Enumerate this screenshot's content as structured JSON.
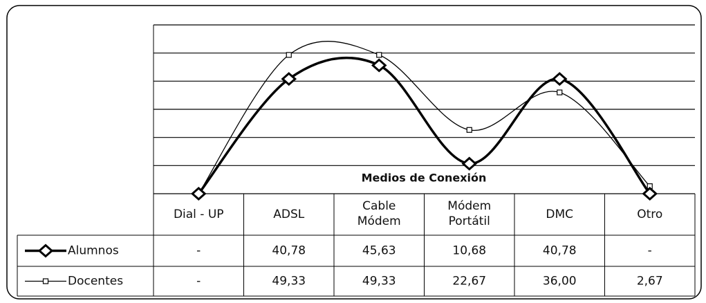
{
  "chart_data": {
    "type": "line",
    "x_label": "Medios de Conexión",
    "categories": [
      "Dial - UP",
      "ADSL",
      "Cable Módem",
      "Módem Portátil",
      "DMC",
      "Otro"
    ],
    "series": [
      {
        "name": "Alumnos",
        "color": "#000000",
        "values": [
          0,
          40.78,
          45.63,
          10.68,
          40.78,
          0
        ],
        "value_labels": [
          "-",
          "40,78",
          "45,63",
          "10,68",
          "40,78",
          "-"
        ]
      },
      {
        "name": "Docentes",
        "color": "#000000",
        "values": [
          0,
          49.33,
          49.33,
          22.67,
          36.0,
          2.67
        ],
        "value_labels": [
          "-",
          "49,33",
          "49,33",
          "22,67",
          "36,00",
          "2,67"
        ]
      }
    ],
    "ylim": [
      0,
      60
    ],
    "yticks": [
      0,
      10,
      20,
      30,
      40,
      50,
      60
    ],
    "grid": true
  }
}
